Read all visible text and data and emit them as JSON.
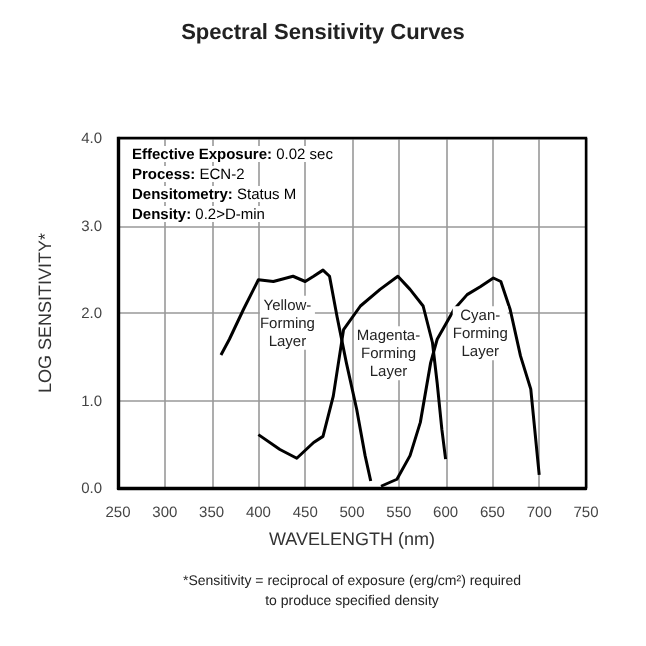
{
  "chart_data": {
    "type": "line",
    "title": "Spectral Sensitivity Curves",
    "xlabel": "WAVELENGTH (nm)",
    "ylabel": "LOG SENSITIVITY*",
    "series": [
      {
        "color": "#000000",
        "x": [
          360,
          369,
          384,
          400,
          416,
          437,
          450,
          459,
          469,
          476,
          484,
          494,
          505,
          514,
          520
        ],
        "values": [
          1.52,
          1.7,
          2.04,
          2.38,
          2.36,
          2.42,
          2.36,
          2.42,
          2.49,
          2.42,
          1.96,
          1.43,
          0.9,
          0.37,
          0.08
        ]
      },
      {
        "color": "#000000",
        "x": [
          400,
          423,
          441,
          459,
          469,
          480,
          491,
          509,
          530,
          549,
          562,
          576,
          586,
          591,
          596,
          600
        ],
        "values": [
          0.61,
          0.44,
          0.34,
          0.52,
          0.59,
          1.05,
          1.81,
          2.08,
          2.27,
          2.42,
          2.27,
          2.08,
          1.66,
          1.2,
          0.67,
          0.33
        ]
      },
      {
        "color": "#000000",
        "x": [
          531,
          548,
          562,
          573,
          584,
          591,
          609,
          623,
          637,
          651,
          659,
          669,
          680,
          691,
          700
        ],
        "values": [
          0.02,
          0.1,
          0.37,
          0.75,
          1.43,
          1.7,
          2.04,
          2.21,
          2.3,
          2.4,
          2.36,
          2.04,
          1.51,
          1.13,
          0.15
        ]
      }
    ],
    "annotations": [
      "Effective Exposure: 0.02 sec",
      "Process: ECN-2",
      "Densitometry: Status M",
      "Density: 0.2>D-min",
      {
        "text": "Yellow-\nForming\nLayer",
        "x": 431,
        "y": 1.89
      },
      {
        "text": "Magenta-\nForming\nLayer",
        "x": 539,
        "y": 1.54
      },
      {
        "text": "Cyan-\nForming\nLayer",
        "x": 637,
        "y": 1.77
      },
      "*Sensitivity = reciprocal of exposure (erg/cm²) required\nto produce specified density"
    ],
    "xlim": [
      250,
      750
    ],
    "xticks": [
      250,
      300,
      350,
      400,
      450,
      500,
      550,
      600,
      650,
      700,
      750
    ],
    "ylim": [
      0,
      4
    ],
    "yticks": [
      {
        "value": 0,
        "label": "0.0"
      },
      {
        "value": 1,
        "label": "1.0"
      },
      {
        "value": 2,
        "label": "2.0"
      },
      {
        "value": 3,
        "label": "3.0"
      },
      {
        "value": 4,
        "label": "4.0"
      }
    ],
    "grid": true,
    "marker": "none",
    "line_style": "solid"
  }
}
